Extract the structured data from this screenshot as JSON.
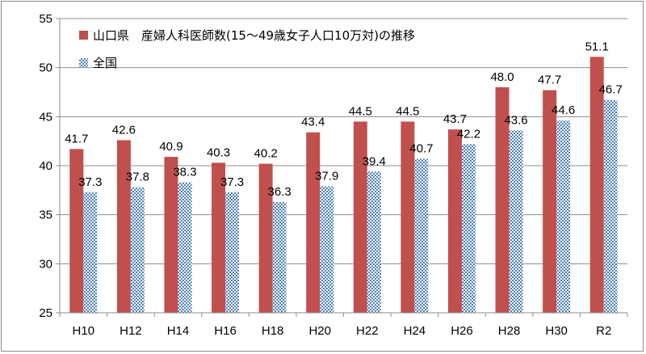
{
  "chart_data": {
    "type": "bar",
    "title": "",
    "xlabel": "",
    "ylabel": "",
    "ylim": [
      25,
      55
    ],
    "yticks": [
      25,
      30,
      35,
      40,
      45,
      50,
      55
    ],
    "grid": true,
    "legend_placement": "top-left",
    "categories": [
      "H10",
      "H12",
      "H14",
      "H16",
      "H18",
      "H20",
      "H22",
      "H24",
      "H26",
      "H28",
      "H30",
      "R2"
    ],
    "series": [
      {
        "name": "山口県　産婦人科医師数(15～49歳女子人口10万対)の推移",
        "color": "#c0504d",
        "values": [
          41.7,
          42.6,
          40.9,
          40.3,
          40.2,
          43.4,
          44.5,
          44.5,
          43.7,
          48.0,
          47.7,
          51.1
        ],
        "labels": [
          "41.7",
          "42.6",
          "40.9",
          "40.3",
          "40.2",
          "43.4",
          "44.5",
          "44.5",
          "43.7",
          "48.0",
          "47.7",
          "51.1"
        ]
      },
      {
        "name": "全国",
        "color": "#4f81bd",
        "values": [
          37.3,
          37.8,
          38.3,
          37.3,
          36.3,
          37.9,
          39.4,
          40.7,
          42.2,
          43.6,
          44.6,
          46.7
        ],
        "labels": [
          "37.3",
          "37.8",
          "38.3",
          "37.3",
          "36.3",
          "37.9",
          "39.4",
          "40.7",
          "42.2",
          "43.6",
          "44.6",
          "46.7"
        ]
      }
    ]
  }
}
